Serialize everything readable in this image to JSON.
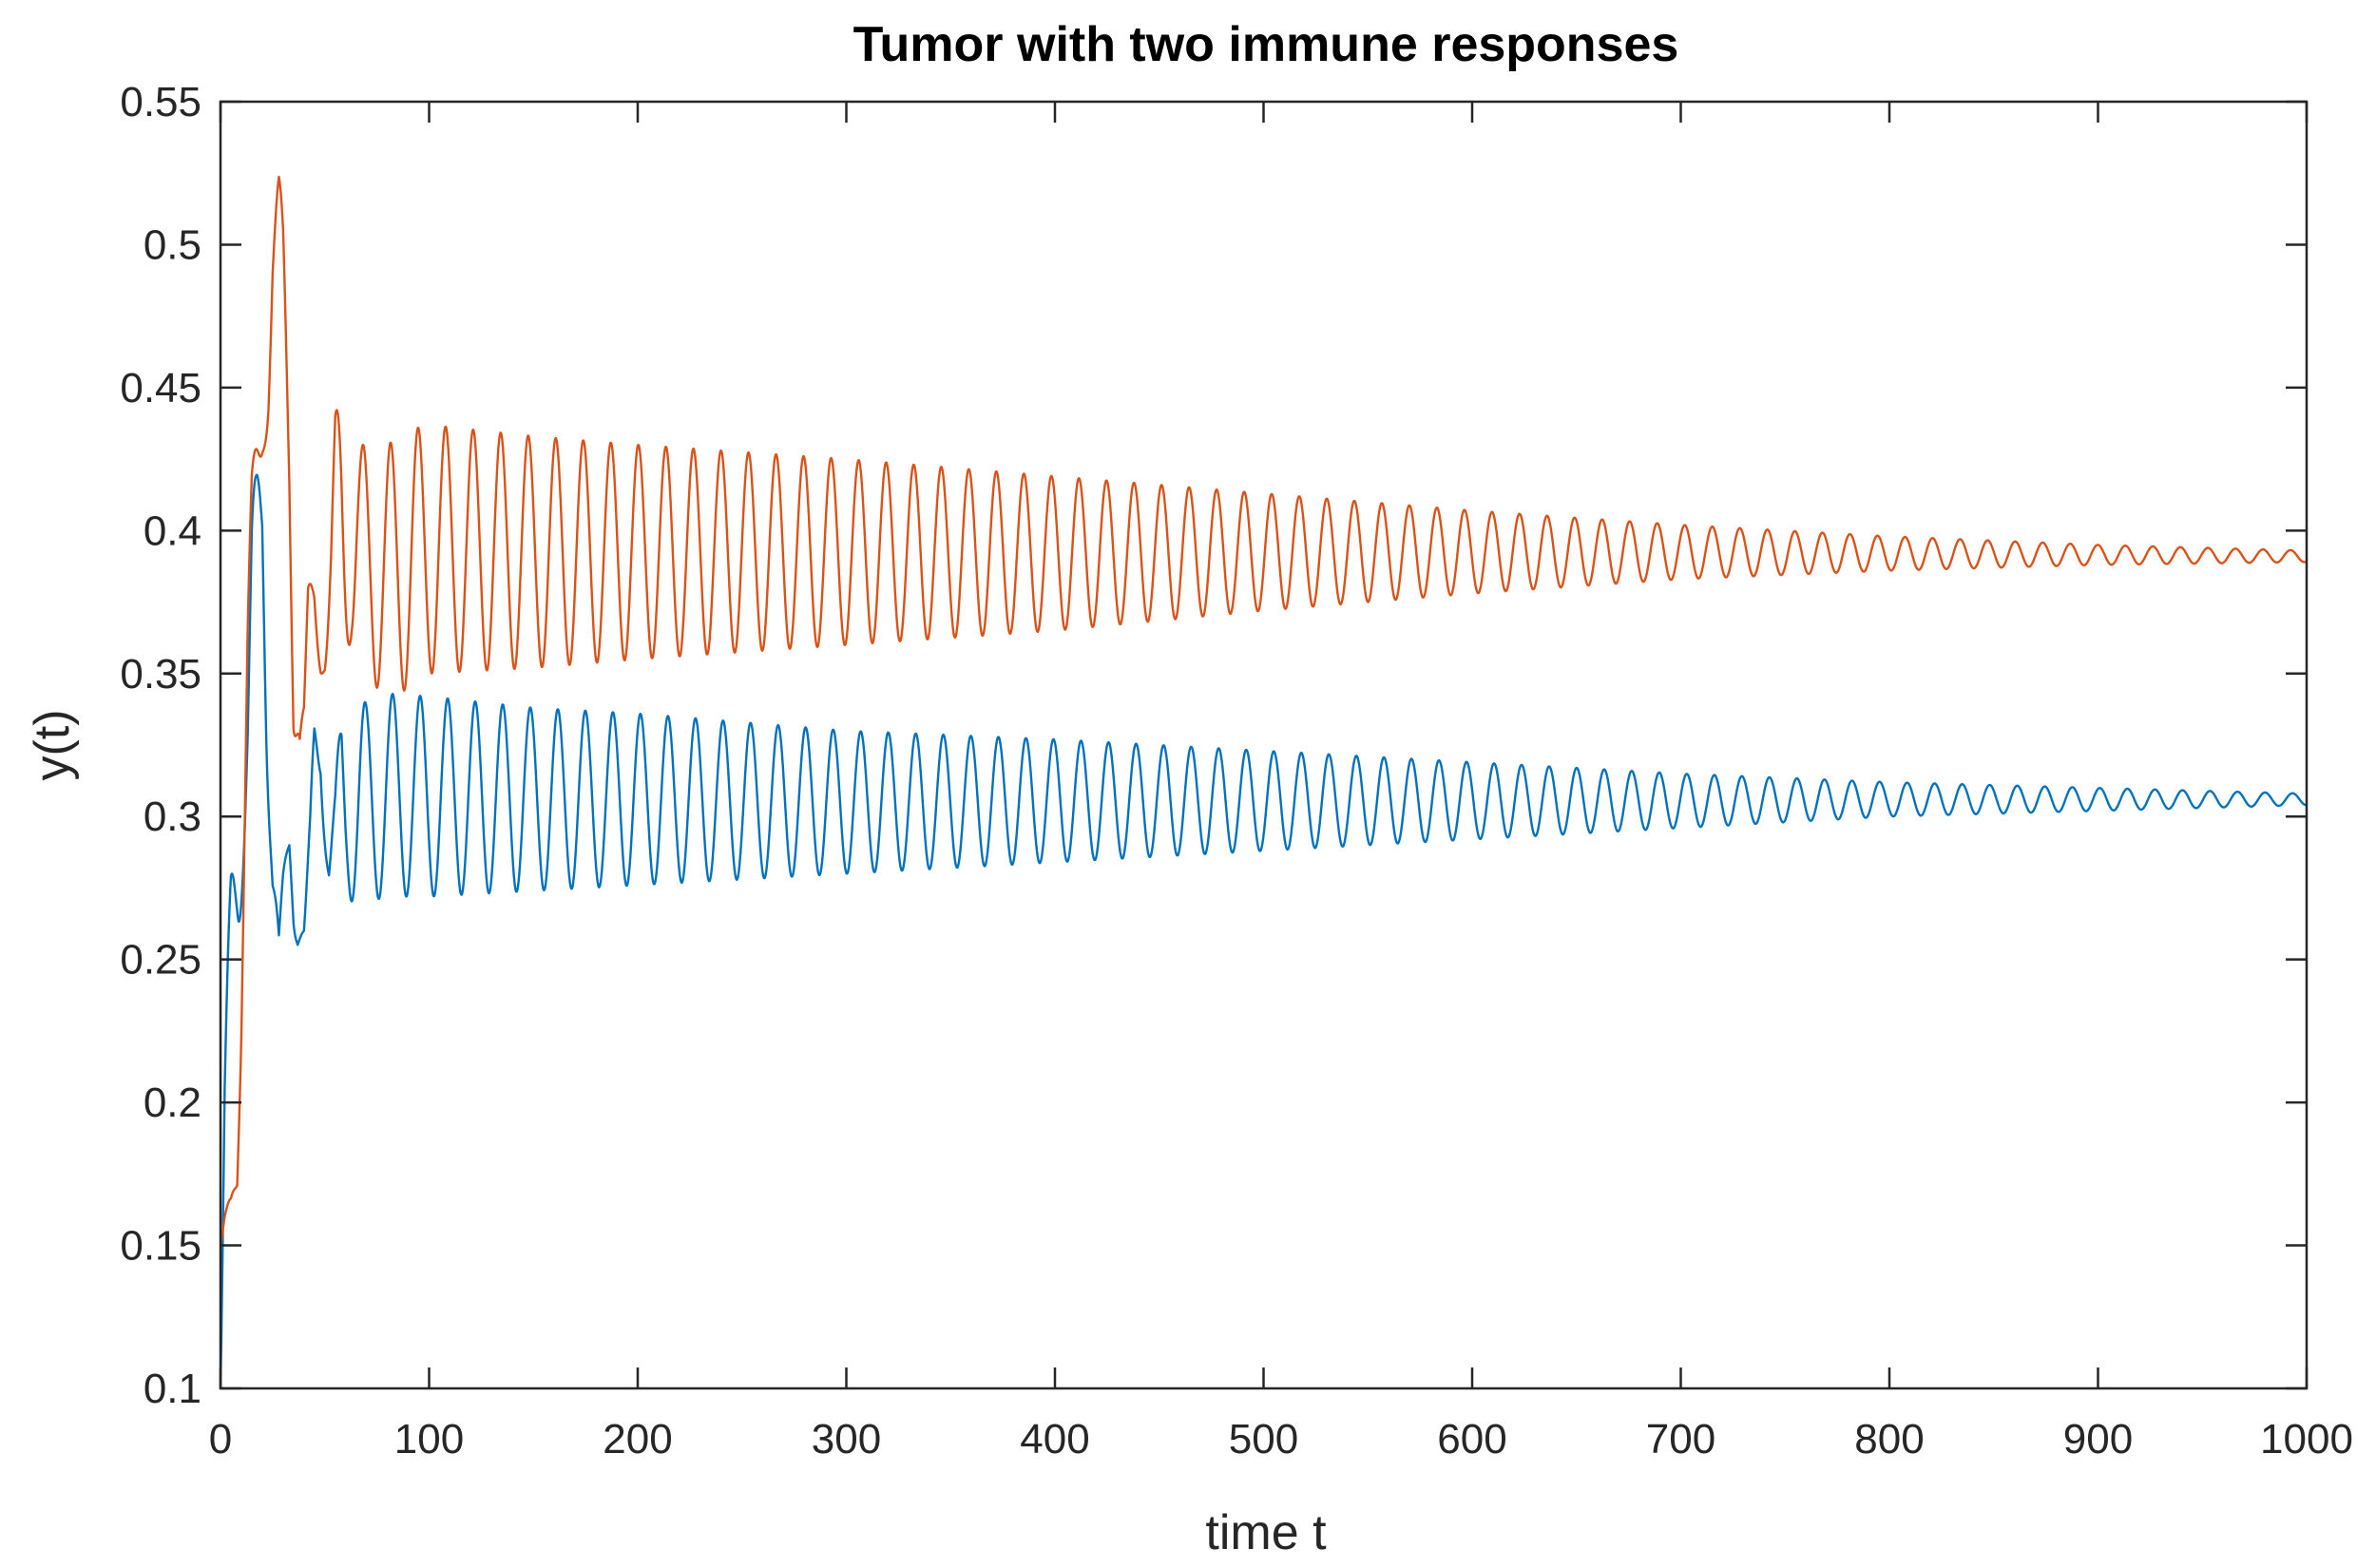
{
  "chart_data": {
    "type": "line",
    "title": "Tumor with two immune responses",
    "xlabel": "time t",
    "ylabel": "y(t)",
    "xlim": [
      0,
      1000
    ],
    "ylim": [
      0.1,
      0.55
    ],
    "x_ticks": [
      0,
      100,
      200,
      300,
      400,
      500,
      600,
      700,
      800,
      900,
      1000
    ],
    "x_tick_labels": [
      "0",
      "100",
      "200",
      "300",
      "400",
      "500",
      "600",
      "700",
      "800",
      "900",
      "1000"
    ],
    "y_ticks": [
      0.1,
      0.15,
      0.2,
      0.25,
      0.3,
      0.35,
      0.4,
      0.45,
      0.5,
      0.55
    ],
    "y_tick_labels": [
      "0.1",
      "0.15",
      "0.2",
      "0.25",
      "0.3",
      "0.35",
      "0.4",
      "0.45",
      "0.5",
      "0.55"
    ],
    "grid": false,
    "box": true,
    "series": [
      {
        "color": "#0072BD",
        "x": [
          0,
          2,
          5,
          8,
          10,
          13,
          15,
          17,
          20,
          22,
          25,
          28,
          30,
          33,
          35,
          37,
          40,
          43,
          45,
          48,
          50,
          52,
          55,
          58,
          60,
          63,
          66,
          70,
          80,
          100,
          150,
          200,
          300,
          400,
          500,
          600,
          700,
          800,
          900,
          1000
        ],
        "envelope_upper": [
          0.1,
          0.21,
          0.29,
          0.34,
          0.33,
          0.36,
          0.41,
          0.42,
          0.44,
          0.4,
          0.3,
          0.26,
          0.28,
          0.3,
          0.29,
          0.26,
          0.26,
          0.3,
          0.34,
          0.35,
          0.32,
          0.3,
          0.31,
          0.34,
          0.33,
          0.34,
          0.34,
          0.34,
          0.343,
          0.342,
          0.338,
          0.336,
          0.33,
          0.327,
          0.323,
          0.319,
          0.315,
          0.312,
          0.31,
          0.308
        ],
        "envelope_lower": [
          0.1,
          0.15,
          0.22,
          0.25,
          0.27,
          0.3,
          0.33,
          0.35,
          0.37,
          0.32,
          0.27,
          0.25,
          0.26,
          0.28,
          0.26,
          0.255,
          0.26,
          0.28,
          0.3,
          0.31,
          0.29,
          0.27,
          0.27,
          0.28,
          0.275,
          0.27,
          0.265,
          0.27,
          0.272,
          0.272,
          0.274,
          0.276,
          0.28,
          0.284,
          0.288,
          0.292,
          0.296,
          0.3,
          0.302,
          0.304
        ],
        "steady_state": 0.305
      },
      {
        "color": "#D95319",
        "x": [
          0,
          2,
          5,
          8,
          10,
          13,
          15,
          18,
          20,
          23,
          25,
          28,
          30,
          33,
          35,
          38,
          40,
          42,
          45,
          48,
          50,
          53,
          55,
          58,
          60,
          63,
          65,
          70,
          80,
          90,
          100,
          150,
          200,
          300,
          400,
          500,
          600,
          700,
          800,
          900,
          1000
        ],
        "envelope_upper": [
          0.15,
          0.16,
          0.17,
          0.19,
          0.27,
          0.38,
          0.42,
          0.44,
          0.45,
          0.49,
          0.52,
          0.525,
          0.51,
          0.46,
          0.4,
          0.34,
          0.34,
          0.38,
          0.39,
          0.37,
          0.36,
          0.4,
          0.44,
          0.455,
          0.44,
          0.42,
          0.43,
          0.43,
          0.43,
          0.435,
          0.437,
          0.433,
          0.43,
          0.425,
          0.419,
          0.413,
          0.407,
          0.402,
          0.398,
          0.395,
          0.393
        ],
        "envelope_lower": [
          0.15,
          0.155,
          0.16,
          0.17,
          0.22,
          0.33,
          0.38,
          0.4,
          0.42,
          0.44,
          0.47,
          0.48,
          0.46,
          0.4,
          0.33,
          0.32,
          0.33,
          0.35,
          0.36,
          0.35,
          0.35,
          0.36,
          0.38,
          0.36,
          0.36,
          0.36,
          0.355,
          0.35,
          0.34,
          0.345,
          0.35,
          0.352,
          0.355,
          0.36,
          0.365,
          0.372,
          0.378,
          0.383,
          0.386,
          0.388,
          0.389
        ],
        "steady_state": 0.391
      }
    ]
  }
}
